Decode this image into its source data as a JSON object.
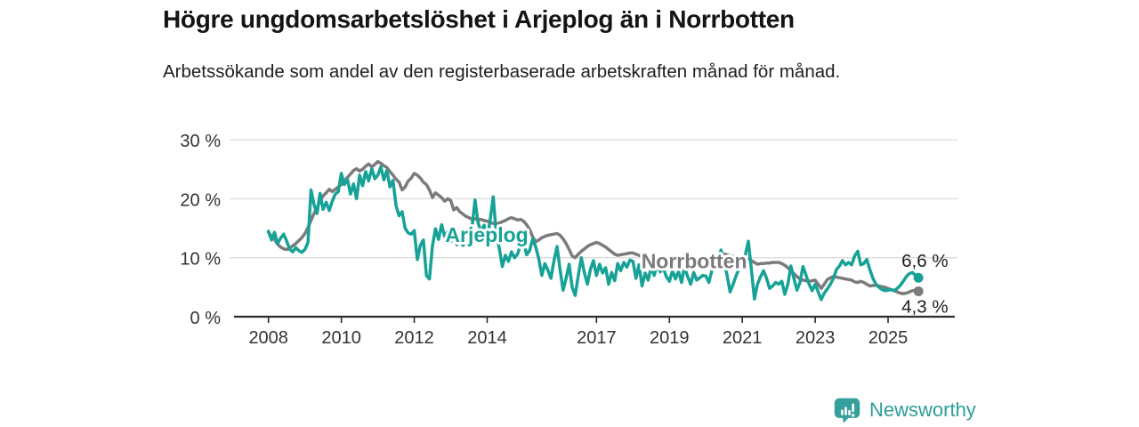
{
  "header": {
    "title": "Högre ungdomsarbetslöshet i Arjeplog än i Norrbotten",
    "subtitle": "Arbetssökande som andel av den registerbaserade arbetskraften månad för månad."
  },
  "footer": {
    "brand": "Newsworthy",
    "logo_icon": "bar-chart-speech-bubble-icon"
  },
  "colors": {
    "arjeplog": "#16a296",
    "norrbotten": "#7b7b7b",
    "grid": "#dcdcdc",
    "axis": "#2d2d2d",
    "tick_text": "#333333",
    "end_label_text": "#1d1d1d",
    "brand_teal": "#2b9e99"
  },
  "chart_data": {
    "type": "line",
    "title": "Högre ungdomsarbetslöshet i Arjeplog än i Norrbotten",
    "subtitle": "Arbetssökande som andel av den registerbaserade arbetskraften månad för månad.",
    "x_unit": "month",
    "x_start": "2008-01",
    "x_end": "2025-11",
    "ylim": [
      0,
      30
    ],
    "grid": "horizontal",
    "legend_position": "inline-labels",
    "y_ticks": [
      {
        "value": 0,
        "label": "0 %"
      },
      {
        "value": 10,
        "label": "10 %"
      },
      {
        "value": 20,
        "label": "20 %"
      },
      {
        "value": 30,
        "label": "30 %"
      }
    ],
    "x_ticks": [
      {
        "year": 2008,
        "label": "2008"
      },
      {
        "year": 2010,
        "label": "2010"
      },
      {
        "year": 2012,
        "label": "2012"
      },
      {
        "year": 2014,
        "label": "2014"
      },
      {
        "year": 2017,
        "label": "2017"
      },
      {
        "year": 2019,
        "label": "2019"
      },
      {
        "year": 2021,
        "label": "2021"
      },
      {
        "year": 2023,
        "label": "2023"
      },
      {
        "year": 2025,
        "label": "2025"
      }
    ],
    "series": [
      {
        "name": "Norrbotten",
        "color": "#7b7b7b",
        "label_anchor": {
          "year": 2019.68,
          "pct": 9.4
        },
        "end_label": "4,3 %",
        "end_value": 4.3,
        "values": [
          14.3,
          13.6,
          13.1,
          12.3,
          11.8,
          11.5,
          11.4,
          11.6,
          12.0,
          12.4,
          12.9,
          13.4,
          14.1,
          15.1,
          16.3,
          17.5,
          18.4,
          19.7,
          20.5,
          21.0,
          21.6,
          21.2,
          21.6,
          22.0,
          22.4,
          23.0,
          23.6,
          24.2,
          24.8,
          25.1,
          24.7,
          25.0,
          25.5,
          25.9,
          25.4,
          25.8,
          26.3,
          26.0,
          25.6,
          25.3,
          24.6,
          24.0,
          23.3,
          22.8,
          21.5,
          22.0,
          23.0,
          23.5,
          24.3,
          24.0,
          23.5,
          22.8,
          22.4,
          21.5,
          20.2,
          21.0,
          20.6,
          20.2,
          19.6,
          20.0,
          19.7,
          18.1,
          18.5,
          17.8,
          17.4,
          17.0,
          16.8,
          16.5,
          16.6,
          16.4,
          16.5,
          16.3,
          16.2,
          16.0,
          15.8,
          15.7,
          15.9,
          16.1,
          16.3,
          16.6,
          16.8,
          16.6,
          16.4,
          16.5,
          16.2,
          15.6,
          14.8,
          13.5,
          12.7,
          13.0,
          13.4,
          13.6,
          13.8,
          13.9,
          14.0,
          14.1,
          13.8,
          13.2,
          12.4,
          11.4,
          10.3,
          10.0,
          10.6,
          11.1,
          11.5,
          11.9,
          12.2,
          12.4,
          12.6,
          12.4,
          12.1,
          11.8,
          11.4,
          11.0,
          10.6,
          10.4,
          10.5,
          10.6,
          10.7,
          10.8,
          10.8,
          10.6,
          10.4,
          10.1,
          9.8,
          9.6,
          9.4,
          9.2,
          9.0,
          8.9,
          8.8,
          8.7,
          8.6,
          8.7,
          8.9,
          8.8,
          8.6,
          8.4,
          8.3,
          8.4,
          8.5,
          8.6,
          8.8,
          8.9,
          9.0,
          9.4,
          9.8,
          10.2,
          10.4,
          10.6,
          10.6,
          10.5,
          10.3,
          10.2,
          10.1,
          10.0,
          10.0,
          9.9,
          9.8,
          9.5,
          9.2,
          8.9,
          9.0,
          9.0,
          9.1,
          9.1,
          9.2,
          9.2,
          9.2,
          9.0,
          8.7,
          8.3,
          7.8,
          7.3,
          6.8,
          6.4,
          6.2,
          6.1,
          6.0,
          6.1,
          6.2,
          5.5,
          4.8,
          5.5,
          6.3,
          6.6,
          6.8,
          6.7,
          6.6,
          6.5,
          6.4,
          6.3,
          6.2,
          5.9,
          5.8,
          6.0,
          5.8,
          5.5,
          5.2,
          5.3,
          5.3,
          5.2,
          5.1,
          5.0,
          4.8,
          4.6,
          4.4,
          4.2,
          4.0,
          3.9,
          4.0,
          4.2,
          4.4,
          4.5,
          4.3
        ]
      },
      {
        "name": "Arjeplog",
        "color": "#16a296",
        "label_anchor": {
          "year": 2013.99,
          "pct": 13.9
        },
        "end_label": "6,6 %",
        "end_value": 6.6,
        "values": [
          14.5,
          13.0,
          14.3,
          12.4,
          13.3,
          14.0,
          12.8,
          11.4,
          11.0,
          11.7,
          11.2,
          10.9,
          11.4,
          12.6,
          21.5,
          19.0,
          17.5,
          20.9,
          18.2,
          19.4,
          18.0,
          19.6,
          20.8,
          21.2,
          24.3,
          22.4,
          23.3,
          20.8,
          22.5,
          20.0,
          24.0,
          22.2,
          24.6,
          23.0,
          25.1,
          23.4,
          24.0,
          25.4,
          23.2,
          24.8,
          22.0,
          23.1,
          18.8,
          17.1,
          17.8,
          15.0,
          14.2,
          14.0,
          14.6,
          9.7,
          12.1,
          13.0,
          7.0,
          6.4,
          12.0,
          14.9,
          13.1,
          15.6,
          13.6,
          14.4,
          12.7,
          13.8,
          12.2,
          13.4,
          12.1,
          12.6,
          13.5,
          15.0,
          19.8,
          16.0,
          14.3,
          15.5,
          13.0,
          16.5,
          20.3,
          14.0,
          11.6,
          8.5,
          10.4,
          9.4,
          11.0,
          10.0,
          10.6,
          12.2,
          12.7,
          10.5,
          11.2,
          13.2,
          11.8,
          9.8,
          7.0,
          9.0,
          7.9,
          6.5,
          9.5,
          11.9,
          8.0,
          4.5,
          6.5,
          8.9,
          5.0,
          3.6,
          7.0,
          10.0,
          7.5,
          5.5,
          8.0,
          9.5,
          7.0,
          8.9,
          7.4,
          8.3,
          5.5,
          7.5,
          6.1,
          9.0,
          7.8,
          9.2,
          8.4,
          9.6,
          9.4,
          6.5,
          8.8,
          5.2,
          7.4,
          6.2,
          8.4,
          7.0,
          9.0,
          7.6,
          8.2,
          6.8,
          6.0,
          7.8,
          6.4,
          7.7,
          5.8,
          8.5,
          6.8,
          5.5,
          7.5,
          6.2,
          6.6,
          7.0,
          6.9,
          5.8,
          7.8,
          9.0,
          10.0,
          11.3,
          9.5,
          7.0,
          4.2,
          5.5,
          7.0,
          8.2,
          9.0,
          10.5,
          12.8,
          8.0,
          3.0,
          5.5,
          6.8,
          7.8,
          6.5,
          4.8,
          5.2,
          5.8,
          5.5,
          6.0,
          3.8,
          5.5,
          8.6,
          6.5,
          4.5,
          5.8,
          8.5,
          7.0,
          5.5,
          4.4,
          5.5,
          4.2,
          2.9,
          4.0,
          4.7,
          5.5,
          6.5,
          8.0,
          8.6,
          9.5,
          8.8,
          9.2,
          8.8,
          10.3,
          11.1,
          8.8,
          9.0,
          9.7,
          8.0,
          6.5,
          5.5,
          5.0,
          4.6,
          4.4,
          4.5,
          4.6,
          4.4,
          4.8,
          5.3,
          6.0,
          6.8,
          7.3,
          7.5,
          7.0,
          6.6
        ]
      }
    ]
  }
}
